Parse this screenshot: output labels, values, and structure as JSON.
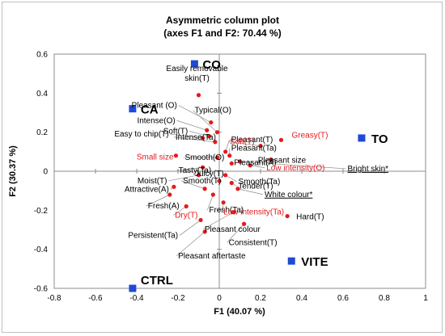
{
  "chart_data": {
    "type": "scatter",
    "title": "Asymmetric column plot",
    "subtitle": "(axes F1 and F2: 70.44 %)",
    "xlabel": "F1 (40.07 %)",
    "ylabel": "F2 (30.37 %)",
    "xlim": [
      -0.8,
      1.0
    ],
    "ylim": [
      -0.6,
      0.6
    ],
    "x_ticks": [
      "-0.8",
      "-0.6",
      "-0.4",
      "-0.2",
      "0",
      "0.2",
      "0.4",
      "0.6",
      "0.8",
      "1"
    ],
    "y_ticks": [
      "-0.6",
      "-0.4",
      "-0.2",
      "0",
      "0.2",
      "0.4",
      "0.6"
    ],
    "grid": false,
    "legend": "none",
    "colors": {
      "products": "#1f49d6",
      "attributes": "#e31a1c",
      "red_label": "#e31a1c",
      "black_label": "#000000",
      "leader": "#7f7f7f"
    },
    "products": [
      {
        "label": "CO",
        "x": -0.12,
        "y": 0.55
      },
      {
        "label": "CA",
        "x": -0.42,
        "y": 0.32
      },
      {
        "label": "TO",
        "x": 0.69,
        "y": 0.17
      },
      {
        "label": "VITE",
        "x": 0.35,
        "y": -0.46
      },
      {
        "label": "CTRL",
        "x": -0.42,
        "y": -0.6
      }
    ],
    "attributes": [
      {
        "label": "Easily removable\nskin(T)",
        "x": -0.1,
        "y": 0.39,
        "red": false
      },
      {
        "label": "Pleasant (O)",
        "x": -0.04,
        "y": 0.25,
        "red": false
      },
      {
        "label": "Typical(O)",
        "x": -0.01,
        "y": 0.2,
        "red": false
      },
      {
        "label": "Intense(O)",
        "x": -0.06,
        "y": 0.21,
        "red": false
      },
      {
        "label": "Easy to chip(T)",
        "x": -0.08,
        "y": 0.17,
        "red": false
      },
      {
        "label": "Soft(T)",
        "x": -0.05,
        "y": 0.18,
        "red": false
      },
      {
        "label": "Intense(Ta)",
        "x": -0.02,
        "y": 0.15,
        "red": false
      },
      {
        "label": "Pleasant(T)",
        "x": 0.03,
        "y": 0.1,
        "red": false
      },
      {
        "label": "Pleasant(Ta)",
        "x": 0.05,
        "y": 0.08,
        "red": false
      },
      {
        "label": "Pleasant(A)",
        "x": 0.06,
        "y": 0.04,
        "red": false
      },
      {
        "label": "Smooth(O)",
        "x": -0.01,
        "y": 0.07,
        "red": false
      },
      {
        "label": "Soft(T)",
        "x": 0.2,
        "y": 0.13,
        "red": true
      },
      {
        "label": "Greasy(T)",
        "x": 0.3,
        "y": 0.16,
        "red": true
      },
      {
        "label": "Small size",
        "x": -0.21,
        "y": 0.08,
        "red": true
      },
      {
        "label": "Tasty(Ta)",
        "x": -0.08,
        "y": 0.02,
        "red": false
      },
      {
        "label": "Pleasant size",
        "x": 0.25,
        "y": 0.06,
        "red": false
      },
      {
        "label": "Low intensity(O)",
        "x": 0.15,
        "y": 0.03,
        "red": true
      },
      {
        "label": "Bright skin*",
        "x": 0.1,
        "y": 0.05,
        "red": false,
        "underline": true
      },
      {
        "label": "Moist(T)",
        "x": -0.1,
        "y": -0.02,
        "red": false
      },
      {
        "label": "Smooth(Ta)",
        "x": 0.03,
        "y": -0.02,
        "red": false
      },
      {
        "label": "Juicy(T)",
        "x": 0.0,
        "y": -0.05,
        "red": false
      },
      {
        "label": "Tender(T)",
        "x": 0.06,
        "y": -0.06,
        "red": false
      },
      {
        "label": "Attractive(A)",
        "x": -0.22,
        "y": -0.08,
        "red": false
      },
      {
        "label": "Smooth(T)",
        "x": -0.07,
        "y": -0.09,
        "red": false
      },
      {
        "label": "White colour*",
        "x": 0.09,
        "y": -0.09,
        "red": false,
        "underline": true
      },
      {
        "label": "Fresh(A)",
        "x": -0.24,
        "y": -0.12,
        "red": false
      },
      {
        "label": "Fresh(Ta)",
        "x": -0.03,
        "y": -0.12,
        "red": false
      },
      {
        "label": "Low intensity(Ta)",
        "x": 0.02,
        "y": -0.16,
        "red": true
      },
      {
        "label": "Dry(T)",
        "x": -0.16,
        "y": -0.18,
        "red": true
      },
      {
        "label": "Pleasant colour",
        "x": 0.07,
        "y": -0.21,
        "red": false
      },
      {
        "label": "Hard(T)",
        "x": 0.33,
        "y": -0.23,
        "red": false
      },
      {
        "label": "Consistent(T)",
        "x": 0.12,
        "y": -0.27,
        "red": false
      },
      {
        "label": "Persistent(Ta)",
        "x": -0.09,
        "y": -0.25,
        "red": false
      },
      {
        "label": "Pleasant aftertaste",
        "x": -0.07,
        "y": -0.31,
        "red": false
      }
    ]
  }
}
